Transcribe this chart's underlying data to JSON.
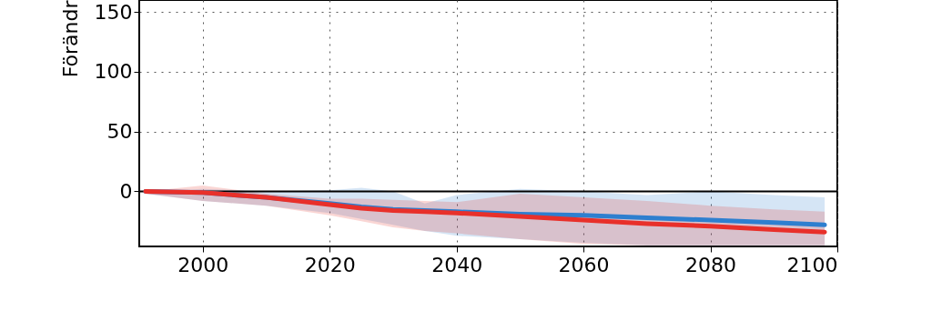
{
  "chart_data": {
    "type": "line",
    "ylabel": "Förändr",
    "xlim": [
      1990,
      2100
    ],
    "xticks": [
      2000,
      2020,
      2040,
      2060,
      2080,
      2100
    ],
    "ylim": [
      -46,
      160
    ],
    "yticks": [
      0,
      50,
      100,
      150
    ],
    "grid": true,
    "line_style": "solid",
    "ref_lines": [
      {
        "axis": "y",
        "value": 0,
        "color": "#000000"
      }
    ],
    "series": [
      {
        "color": "#2e7fcf",
        "x": [
          1991,
          2000,
          2010,
          2020,
          2025,
          2030,
          2035,
          2040,
          2050,
          2060,
          2070,
          2080,
          2090,
          2098
        ],
        "values": [
          0,
          -1,
          -5,
          -10,
          -13,
          -15,
          -16,
          -17,
          -19,
          -20,
          -22,
          -24,
          -26,
          -28
        ],
        "upper": [
          0,
          2,
          0,
          1,
          3,
          0,
          -10,
          -3,
          2,
          0,
          -3,
          0,
          -3,
          -5
        ],
        "lower": [
          -2,
          -8,
          -12,
          -18,
          -23,
          -28,
          -33,
          -37,
          -40,
          -43,
          -45,
          -45,
          -45,
          -45
        ]
      },
      {
        "color": "#e8302a",
        "x": [
          1991,
          2000,
          2010,
          2020,
          2025,
          2030,
          2035,
          2040,
          2050,
          2060,
          2070,
          2080,
          2090,
          2098
        ],
        "values": [
          0,
          -1,
          -5,
          -11,
          -14,
          -16,
          -17,
          -18,
          -21,
          -24,
          -27,
          -29,
          -32,
          -34
        ],
        "upper": [
          0,
          5,
          -2,
          -6,
          -6,
          -7,
          -8,
          -9,
          -2,
          -5,
          -8,
          -12,
          -15,
          -17
        ],
        "lower": [
          -2,
          -8,
          -12,
          -20,
          -25,
          -30,
          -33,
          -35,
          -40,
          -44,
          -45,
          -45,
          -45,
          -45
        ]
      }
    ]
  }
}
